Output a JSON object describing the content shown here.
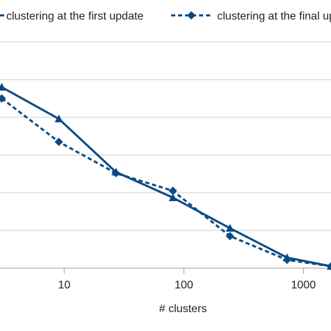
{
  "chart_data": {
    "type": "line",
    "xlabel": "# clusters",
    "ylabel": "",
    "title": "",
    "x_scale": "log",
    "x_ticks": [
      10,
      100,
      1000
    ],
    "x_tick_labels": [
      "10",
      "100",
      "1000"
    ],
    "xlim": [
      2.9,
      1700
    ],
    "ylim": [
      0,
      6
    ],
    "y_gridlines": [
      0,
      1,
      2,
      3,
      4,
      5,
      6
    ],
    "grid": true,
    "legend_position": "top",
    "colors": {
      "series": "#0b4a84",
      "grid": "#cfcfcf",
      "axis": "#999999"
    },
    "series": [
      {
        "name": "clustering at the first update",
        "line_style": "solid",
        "marker": "triangle",
        "x": [
          3,
          9,
          27,
          81,
          243,
          729,
          1700
        ],
        "y": [
          4.8,
          3.96,
          2.55,
          1.87,
          1.06,
          0.28,
          0.05
        ]
      },
      {
        "name": "clustering at the final update",
        "line_style": "dashed",
        "marker": "diamond",
        "x": [
          3,
          9,
          27,
          81,
          243,
          729,
          1700
        ],
        "y": [
          4.5,
          3.35,
          2.52,
          2.05,
          0.85,
          0.22,
          0.05
        ]
      }
    ]
  }
}
